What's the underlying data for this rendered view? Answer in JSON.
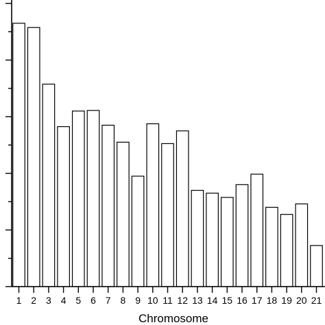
{
  "chart_data": {
    "type": "bar",
    "xlabel": "Chromosome",
    "ylabel": "",
    "categories": [
      "1",
      "2",
      "3",
      "4",
      "5",
      "6",
      "7",
      "8",
      "9",
      "10",
      "11",
      "12",
      "13",
      "14",
      "15",
      "16",
      "17",
      "18",
      "19",
      "20",
      "21"
    ],
    "y_tick_labels": [
      "",
      "",
      "",
      "",
      "",
      ""
    ],
    "values": [
      9.3,
      9.15,
      7.15,
      5.65,
      6.2,
      6.22,
      5.7,
      5.1,
      3.9,
      5.75,
      5.05,
      5.5,
      3.4,
      3.3,
      3.15,
      3.6,
      3.97,
      2.8,
      2.55,
      2.92,
      1.45
    ],
    "ylim": [
      0,
      10
    ],
    "grid": false,
    "legend": "none"
  }
}
